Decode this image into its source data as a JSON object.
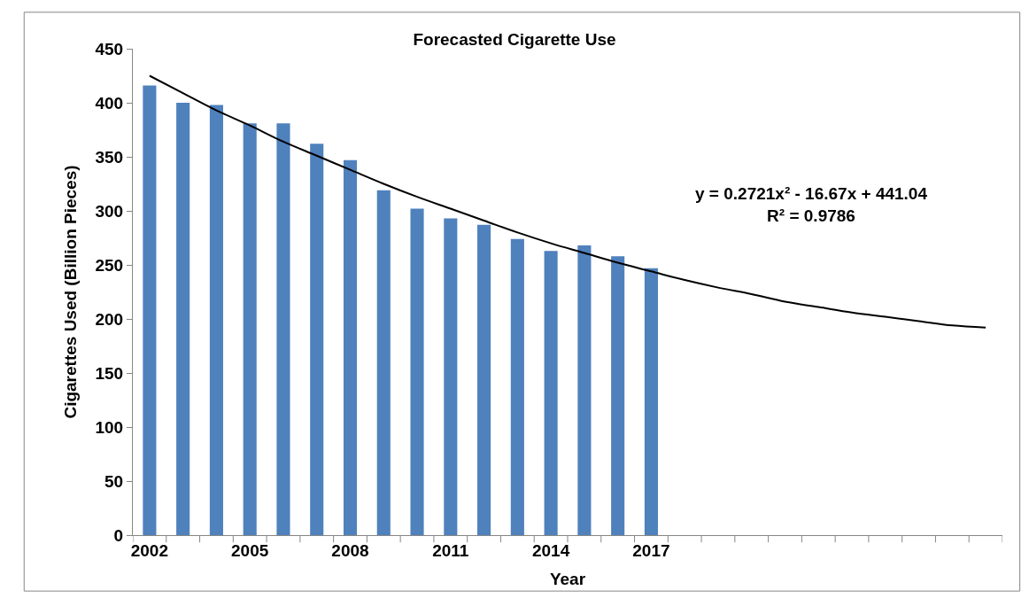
{
  "chart_data": {
    "type": "bar",
    "title": "Forecasted Cigarette Use",
    "xlabel": "Year",
    "ylabel": "Cigarettes Used (Billion Pieces)",
    "categories": [
      "2002",
      null,
      null,
      "2005",
      null,
      null,
      "2008",
      null,
      null,
      "2011",
      null,
      null,
      "2014",
      null,
      null,
      "2017",
      null,
      null,
      null,
      null,
      null,
      null,
      null,
      null,
      null,
      null
    ],
    "series": [
      {
        "color": "#4f81bd",
        "values": [
          416,
          400,
          398,
          381,
          381,
          362,
          347,
          319,
          302,
          293,
          287,
          274,
          263,
          268,
          258,
          247,
          null,
          null,
          null,
          null,
          null,
          null,
          null,
          null,
          null,
          null
        ]
      },
      {
        "type": "line",
        "color": "#000000",
        "values": [
          425,
          409,
          393,
          379,
          364,
          351,
          338,
          325,
          313,
          302,
          291,
          280,
          270,
          261,
          252,
          244,
          236,
          229,
          223,
          216,
          211,
          206,
          202,
          198,
          194,
          192
        ]
      }
    ],
    "annotations": [
      "y = 0.2721x² - 16.67x + 441.04\nR² = 0.9786"
    ],
    "ylim": [
      0,
      450
    ],
    "yticks": [
      0,
      50,
      100,
      150,
      200,
      250,
      300,
      350,
      400,
      450
    ]
  }
}
